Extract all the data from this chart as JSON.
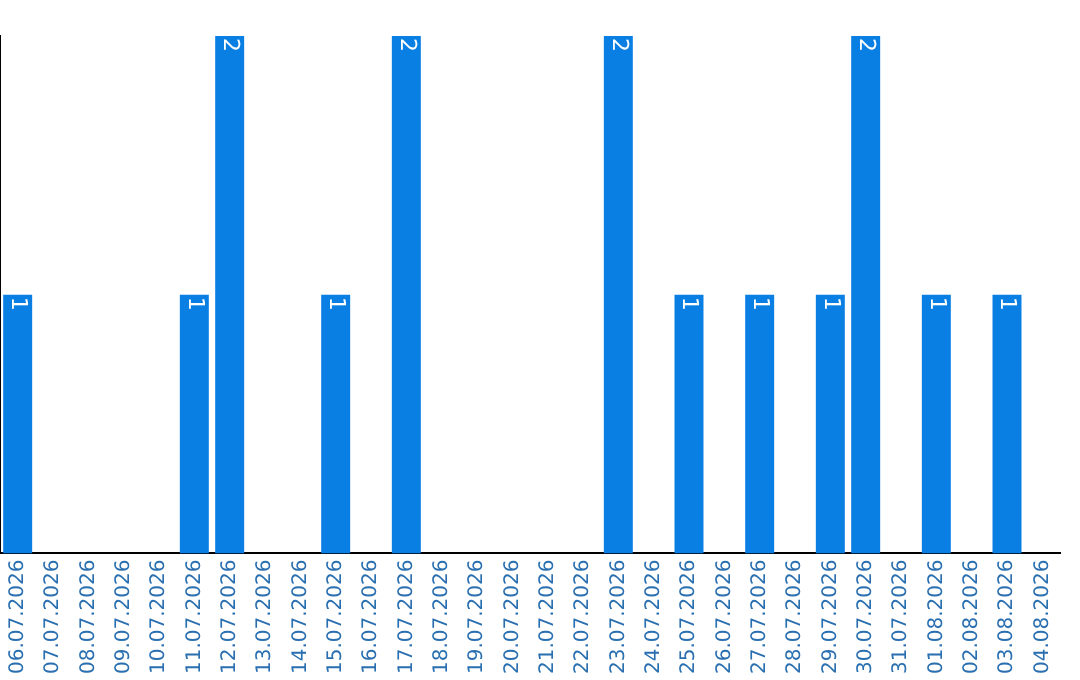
{
  "chart_data": {
    "type": "bar",
    "categories": [
      "06.07.2026",
      "07.07.2026",
      "08.07.2026",
      "09.07.2026",
      "10.07.2026",
      "11.07.2026",
      "12.07.2026",
      "13.07.2026",
      "14.07.2026",
      "15.07.2026",
      "16.07.2026",
      "17.07.2026",
      "18.07.2026",
      "19.07.2026",
      "20.07.2026",
      "21.07.2026",
      "22.07.2026",
      "23.07.2026",
      "24.07.2026",
      "25.07.2026",
      "26.07.2026",
      "27.07.2026",
      "28.07.2026",
      "29.07.2026",
      "30.07.2026",
      "31.07.2026",
      "01.08.2026",
      "02.08.2026",
      "03.08.2026",
      "04.08.2026"
    ],
    "values": [
      1,
      0,
      0,
      0,
      0,
      1,
      2,
      0,
      0,
      1,
      0,
      2,
      0,
      0,
      0,
      0,
      0,
      2,
      0,
      1,
      0,
      1,
      0,
      1,
      2,
      0,
      1,
      0,
      1,
      0
    ],
    "value_labels": [
      "1",
      null,
      null,
      null,
      null,
      "1",
      "2",
      null,
      null,
      "1",
      null,
      "2",
      null,
      null,
      null,
      null,
      null,
      "2",
      null,
      "1",
      null,
      "1",
      null,
      "1",
      "2",
      null,
      "1",
      null,
      "1",
      null
    ],
    "color": "#0a7fe3",
    "tick_labels": "x",
    "grid": false,
    "legend": false
  }
}
